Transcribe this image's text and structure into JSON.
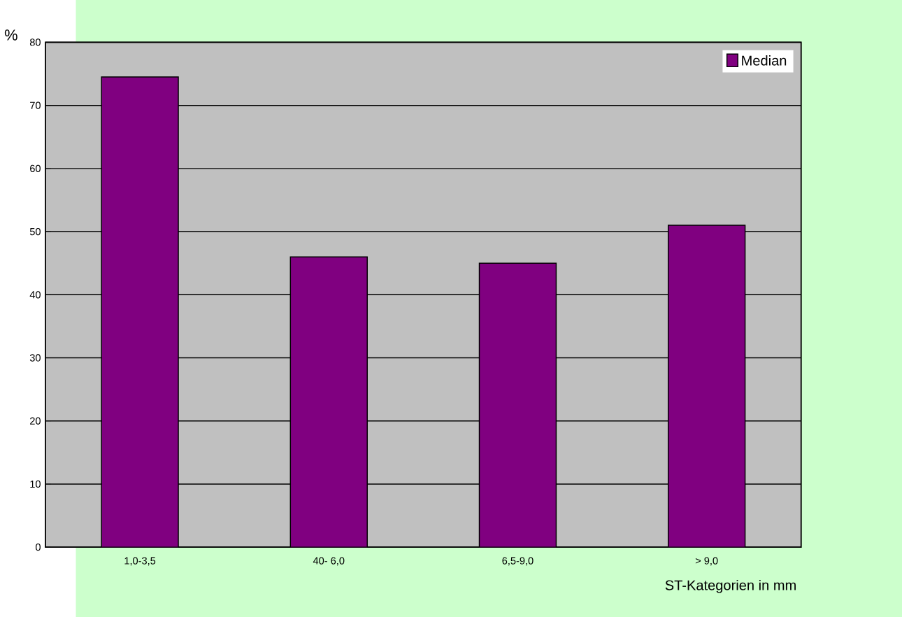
{
  "chart_data": {
    "type": "bar",
    "xlabel": "ST-Kategorien in mm",
    "ylabel": "%",
    "categories": [
      "1,0-3,5",
      "40- 6,0",
      "6,5-9,0",
      "> 9,0"
    ],
    "series": [
      {
        "name": "Median",
        "color": "#800080",
        "values": [
          74.5,
          46,
          45,
          51
        ]
      }
    ],
    "ylim": [
      0,
      80
    ],
    "yticks": [
      0,
      10,
      20,
      30,
      40,
      50,
      60,
      70,
      80
    ],
    "grid": "y",
    "legend": "top right"
  }
}
